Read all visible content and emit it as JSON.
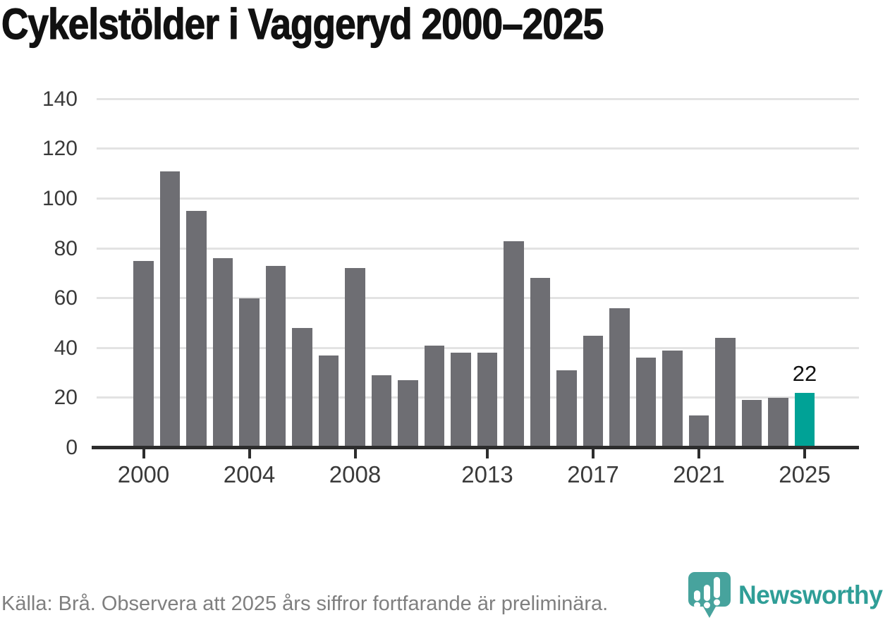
{
  "chart_data": {
    "type": "bar",
    "title": "Cykelstölder i Vaggeryd 2000–2025",
    "categories": [
      2000,
      2001,
      2002,
      2003,
      2004,
      2005,
      2006,
      2007,
      2008,
      2009,
      2010,
      2011,
      2012,
      2013,
      2014,
      2015,
      2016,
      2017,
      2018,
      2019,
      2020,
      2021,
      2022,
      2023,
      2024,
      2025
    ],
    "values": [
      75,
      111,
      95,
      76,
      60,
      73,
      48,
      37,
      72,
      29,
      27,
      41,
      38,
      38,
      83,
      68,
      31,
      45,
      56,
      36,
      39,
      13,
      44,
      19,
      20,
      22
    ],
    "xlabel": "",
    "ylabel": "",
    "ylim": [
      0,
      140
    ],
    "yticks": [
      0,
      20,
      40,
      60,
      80,
      100,
      120,
      140
    ],
    "xticks": [
      2000,
      2004,
      2008,
      2013,
      2017,
      2021,
      2025
    ],
    "grid": "horizontal",
    "legend": "none",
    "bar_color": "#6e6e73",
    "highlight_color": "#00a296",
    "highlight_index": 25,
    "annotation": {
      "text": "22",
      "index": 25
    },
    "gridline_color": "#e3e3e3",
    "axis_color": "#2d2d2d",
    "tick_label_color": "#3a3a3a"
  },
  "footer": {
    "source_text": "Källa: Brå. Observera att 2025 års siffror fortfarande är preliminära."
  },
  "branding": {
    "name": "Newsworthy",
    "logo_icon": "map-pin-bar-chart-icon",
    "pin_color": "#47a39d",
    "text_color": "#2f9e97"
  }
}
